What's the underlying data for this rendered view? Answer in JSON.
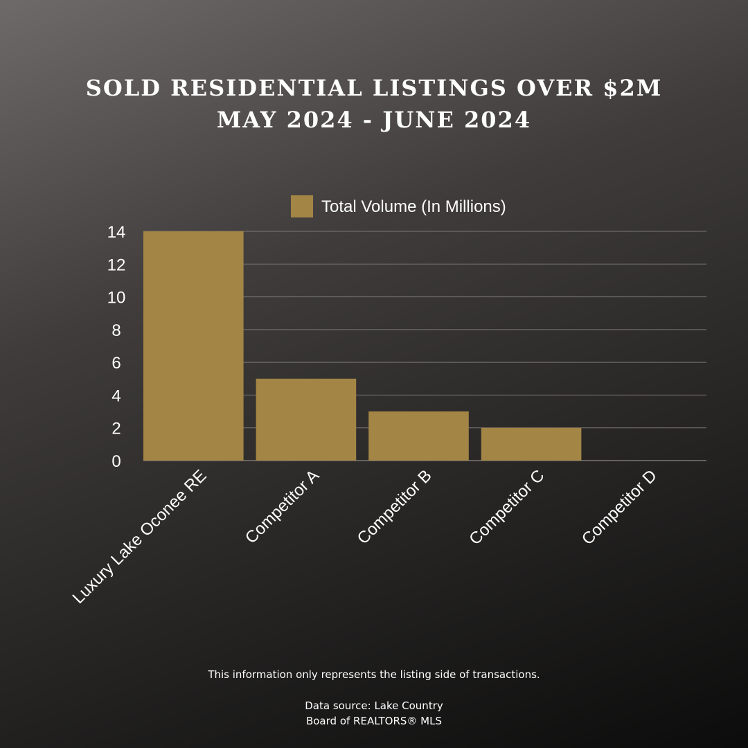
{
  "title_line1": "SOLD RESIDENTIAL LISTINGS OVER $2M",
  "title_line2": "MAY 2024 - JUNE 2024",
  "colors": {
    "bar": "#a38545",
    "grid": "#7a7775",
    "text": "#ffffff"
  },
  "chart_data": {
    "type": "bar",
    "categories": [
      "Luxury Lake Oconee RE",
      "Competitor A",
      "Competitor B",
      "Competitor C",
      "Competitor D"
    ],
    "series": [
      {
        "name": "Total Volume (In Millions)",
        "values": [
          14,
          5,
          3,
          2,
          0
        ]
      }
    ],
    "ylim": [
      0,
      14
    ],
    "yticks": [
      0,
      2,
      4,
      6,
      8,
      10,
      12,
      14
    ],
    "grid": true,
    "legend": "top-center"
  },
  "footnote": "This information only represents the listing side of transactions.",
  "source_line1": "Data source: Lake Country",
  "source_line2": "Board of REALTORS® MLS"
}
